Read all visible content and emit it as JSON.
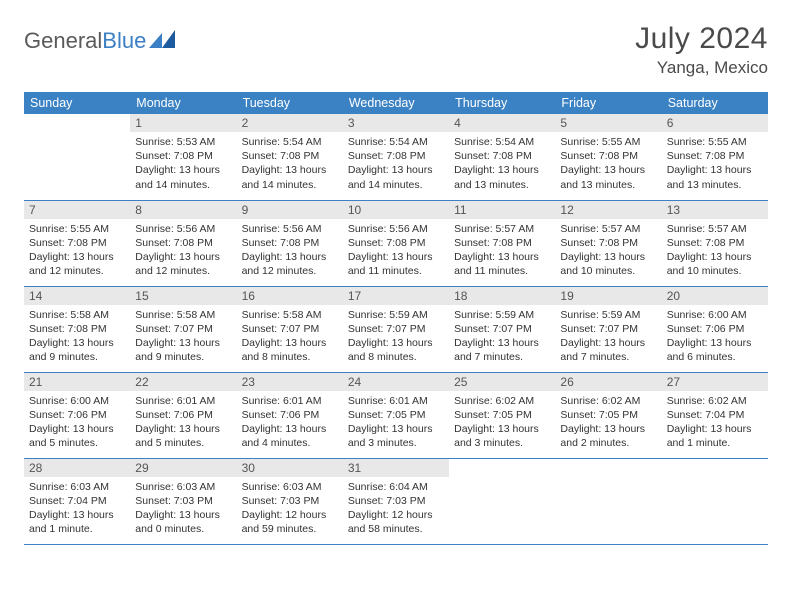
{
  "brand": {
    "part1": "General",
    "part2": "Blue"
  },
  "title": "July 2024",
  "location": "Yanga, Mexico",
  "colors": {
    "header_bg": "#3b82c4",
    "header_text": "#ffffff",
    "daynum_bg": "#e8e8e8",
    "daynum_text": "#555555",
    "body_text": "#333333",
    "row_divider": "#3b82c4",
    "logo_gray": "#5a5a5a",
    "logo_blue": "#3b7fc4"
  },
  "day_labels": [
    "Sunday",
    "Monday",
    "Tuesday",
    "Wednesday",
    "Thursday",
    "Friday",
    "Saturday"
  ],
  "weeks": [
    [
      null,
      {
        "n": "1",
        "sr": "Sunrise: 5:53 AM",
        "ss": "Sunset: 7:08 PM",
        "d1": "Daylight: 13 hours",
        "d2": "and 14 minutes."
      },
      {
        "n": "2",
        "sr": "Sunrise: 5:54 AM",
        "ss": "Sunset: 7:08 PM",
        "d1": "Daylight: 13 hours",
        "d2": "and 14 minutes."
      },
      {
        "n": "3",
        "sr": "Sunrise: 5:54 AM",
        "ss": "Sunset: 7:08 PM",
        "d1": "Daylight: 13 hours",
        "d2": "and 14 minutes."
      },
      {
        "n": "4",
        "sr": "Sunrise: 5:54 AM",
        "ss": "Sunset: 7:08 PM",
        "d1": "Daylight: 13 hours",
        "d2": "and 13 minutes."
      },
      {
        "n": "5",
        "sr": "Sunrise: 5:55 AM",
        "ss": "Sunset: 7:08 PM",
        "d1": "Daylight: 13 hours",
        "d2": "and 13 minutes."
      },
      {
        "n": "6",
        "sr": "Sunrise: 5:55 AM",
        "ss": "Sunset: 7:08 PM",
        "d1": "Daylight: 13 hours",
        "d2": "and 13 minutes."
      }
    ],
    [
      {
        "n": "7",
        "sr": "Sunrise: 5:55 AM",
        "ss": "Sunset: 7:08 PM",
        "d1": "Daylight: 13 hours",
        "d2": "and 12 minutes."
      },
      {
        "n": "8",
        "sr": "Sunrise: 5:56 AM",
        "ss": "Sunset: 7:08 PM",
        "d1": "Daylight: 13 hours",
        "d2": "and 12 minutes."
      },
      {
        "n": "9",
        "sr": "Sunrise: 5:56 AM",
        "ss": "Sunset: 7:08 PM",
        "d1": "Daylight: 13 hours",
        "d2": "and 12 minutes."
      },
      {
        "n": "10",
        "sr": "Sunrise: 5:56 AM",
        "ss": "Sunset: 7:08 PM",
        "d1": "Daylight: 13 hours",
        "d2": "and 11 minutes."
      },
      {
        "n": "11",
        "sr": "Sunrise: 5:57 AM",
        "ss": "Sunset: 7:08 PM",
        "d1": "Daylight: 13 hours",
        "d2": "and 11 minutes."
      },
      {
        "n": "12",
        "sr": "Sunrise: 5:57 AM",
        "ss": "Sunset: 7:08 PM",
        "d1": "Daylight: 13 hours",
        "d2": "and 10 minutes."
      },
      {
        "n": "13",
        "sr": "Sunrise: 5:57 AM",
        "ss": "Sunset: 7:08 PM",
        "d1": "Daylight: 13 hours",
        "d2": "and 10 minutes."
      }
    ],
    [
      {
        "n": "14",
        "sr": "Sunrise: 5:58 AM",
        "ss": "Sunset: 7:08 PM",
        "d1": "Daylight: 13 hours",
        "d2": "and 9 minutes."
      },
      {
        "n": "15",
        "sr": "Sunrise: 5:58 AM",
        "ss": "Sunset: 7:07 PM",
        "d1": "Daylight: 13 hours",
        "d2": "and 9 minutes."
      },
      {
        "n": "16",
        "sr": "Sunrise: 5:58 AM",
        "ss": "Sunset: 7:07 PM",
        "d1": "Daylight: 13 hours",
        "d2": "and 8 minutes."
      },
      {
        "n": "17",
        "sr": "Sunrise: 5:59 AM",
        "ss": "Sunset: 7:07 PM",
        "d1": "Daylight: 13 hours",
        "d2": "and 8 minutes."
      },
      {
        "n": "18",
        "sr": "Sunrise: 5:59 AM",
        "ss": "Sunset: 7:07 PM",
        "d1": "Daylight: 13 hours",
        "d2": "and 7 minutes."
      },
      {
        "n": "19",
        "sr": "Sunrise: 5:59 AM",
        "ss": "Sunset: 7:07 PM",
        "d1": "Daylight: 13 hours",
        "d2": "and 7 minutes."
      },
      {
        "n": "20",
        "sr": "Sunrise: 6:00 AM",
        "ss": "Sunset: 7:06 PM",
        "d1": "Daylight: 13 hours",
        "d2": "and 6 minutes."
      }
    ],
    [
      {
        "n": "21",
        "sr": "Sunrise: 6:00 AM",
        "ss": "Sunset: 7:06 PM",
        "d1": "Daylight: 13 hours",
        "d2": "and 5 minutes."
      },
      {
        "n": "22",
        "sr": "Sunrise: 6:01 AM",
        "ss": "Sunset: 7:06 PM",
        "d1": "Daylight: 13 hours",
        "d2": "and 5 minutes."
      },
      {
        "n": "23",
        "sr": "Sunrise: 6:01 AM",
        "ss": "Sunset: 7:06 PM",
        "d1": "Daylight: 13 hours",
        "d2": "and 4 minutes."
      },
      {
        "n": "24",
        "sr": "Sunrise: 6:01 AM",
        "ss": "Sunset: 7:05 PM",
        "d1": "Daylight: 13 hours",
        "d2": "and 3 minutes."
      },
      {
        "n": "25",
        "sr": "Sunrise: 6:02 AM",
        "ss": "Sunset: 7:05 PM",
        "d1": "Daylight: 13 hours",
        "d2": "and 3 minutes."
      },
      {
        "n": "26",
        "sr": "Sunrise: 6:02 AM",
        "ss": "Sunset: 7:05 PM",
        "d1": "Daylight: 13 hours",
        "d2": "and 2 minutes."
      },
      {
        "n": "27",
        "sr": "Sunrise: 6:02 AM",
        "ss": "Sunset: 7:04 PM",
        "d1": "Daylight: 13 hours",
        "d2": "and 1 minute."
      }
    ],
    [
      {
        "n": "28",
        "sr": "Sunrise: 6:03 AM",
        "ss": "Sunset: 7:04 PM",
        "d1": "Daylight: 13 hours",
        "d2": "and 1 minute."
      },
      {
        "n": "29",
        "sr": "Sunrise: 6:03 AM",
        "ss": "Sunset: 7:03 PM",
        "d1": "Daylight: 13 hours",
        "d2": "and 0 minutes."
      },
      {
        "n": "30",
        "sr": "Sunrise: 6:03 AM",
        "ss": "Sunset: 7:03 PM",
        "d1": "Daylight: 12 hours",
        "d2": "and 59 minutes."
      },
      {
        "n": "31",
        "sr": "Sunrise: 6:04 AM",
        "ss": "Sunset: 7:03 PM",
        "d1": "Daylight: 12 hours",
        "d2": "and 58 minutes."
      },
      null,
      null,
      null
    ]
  ]
}
